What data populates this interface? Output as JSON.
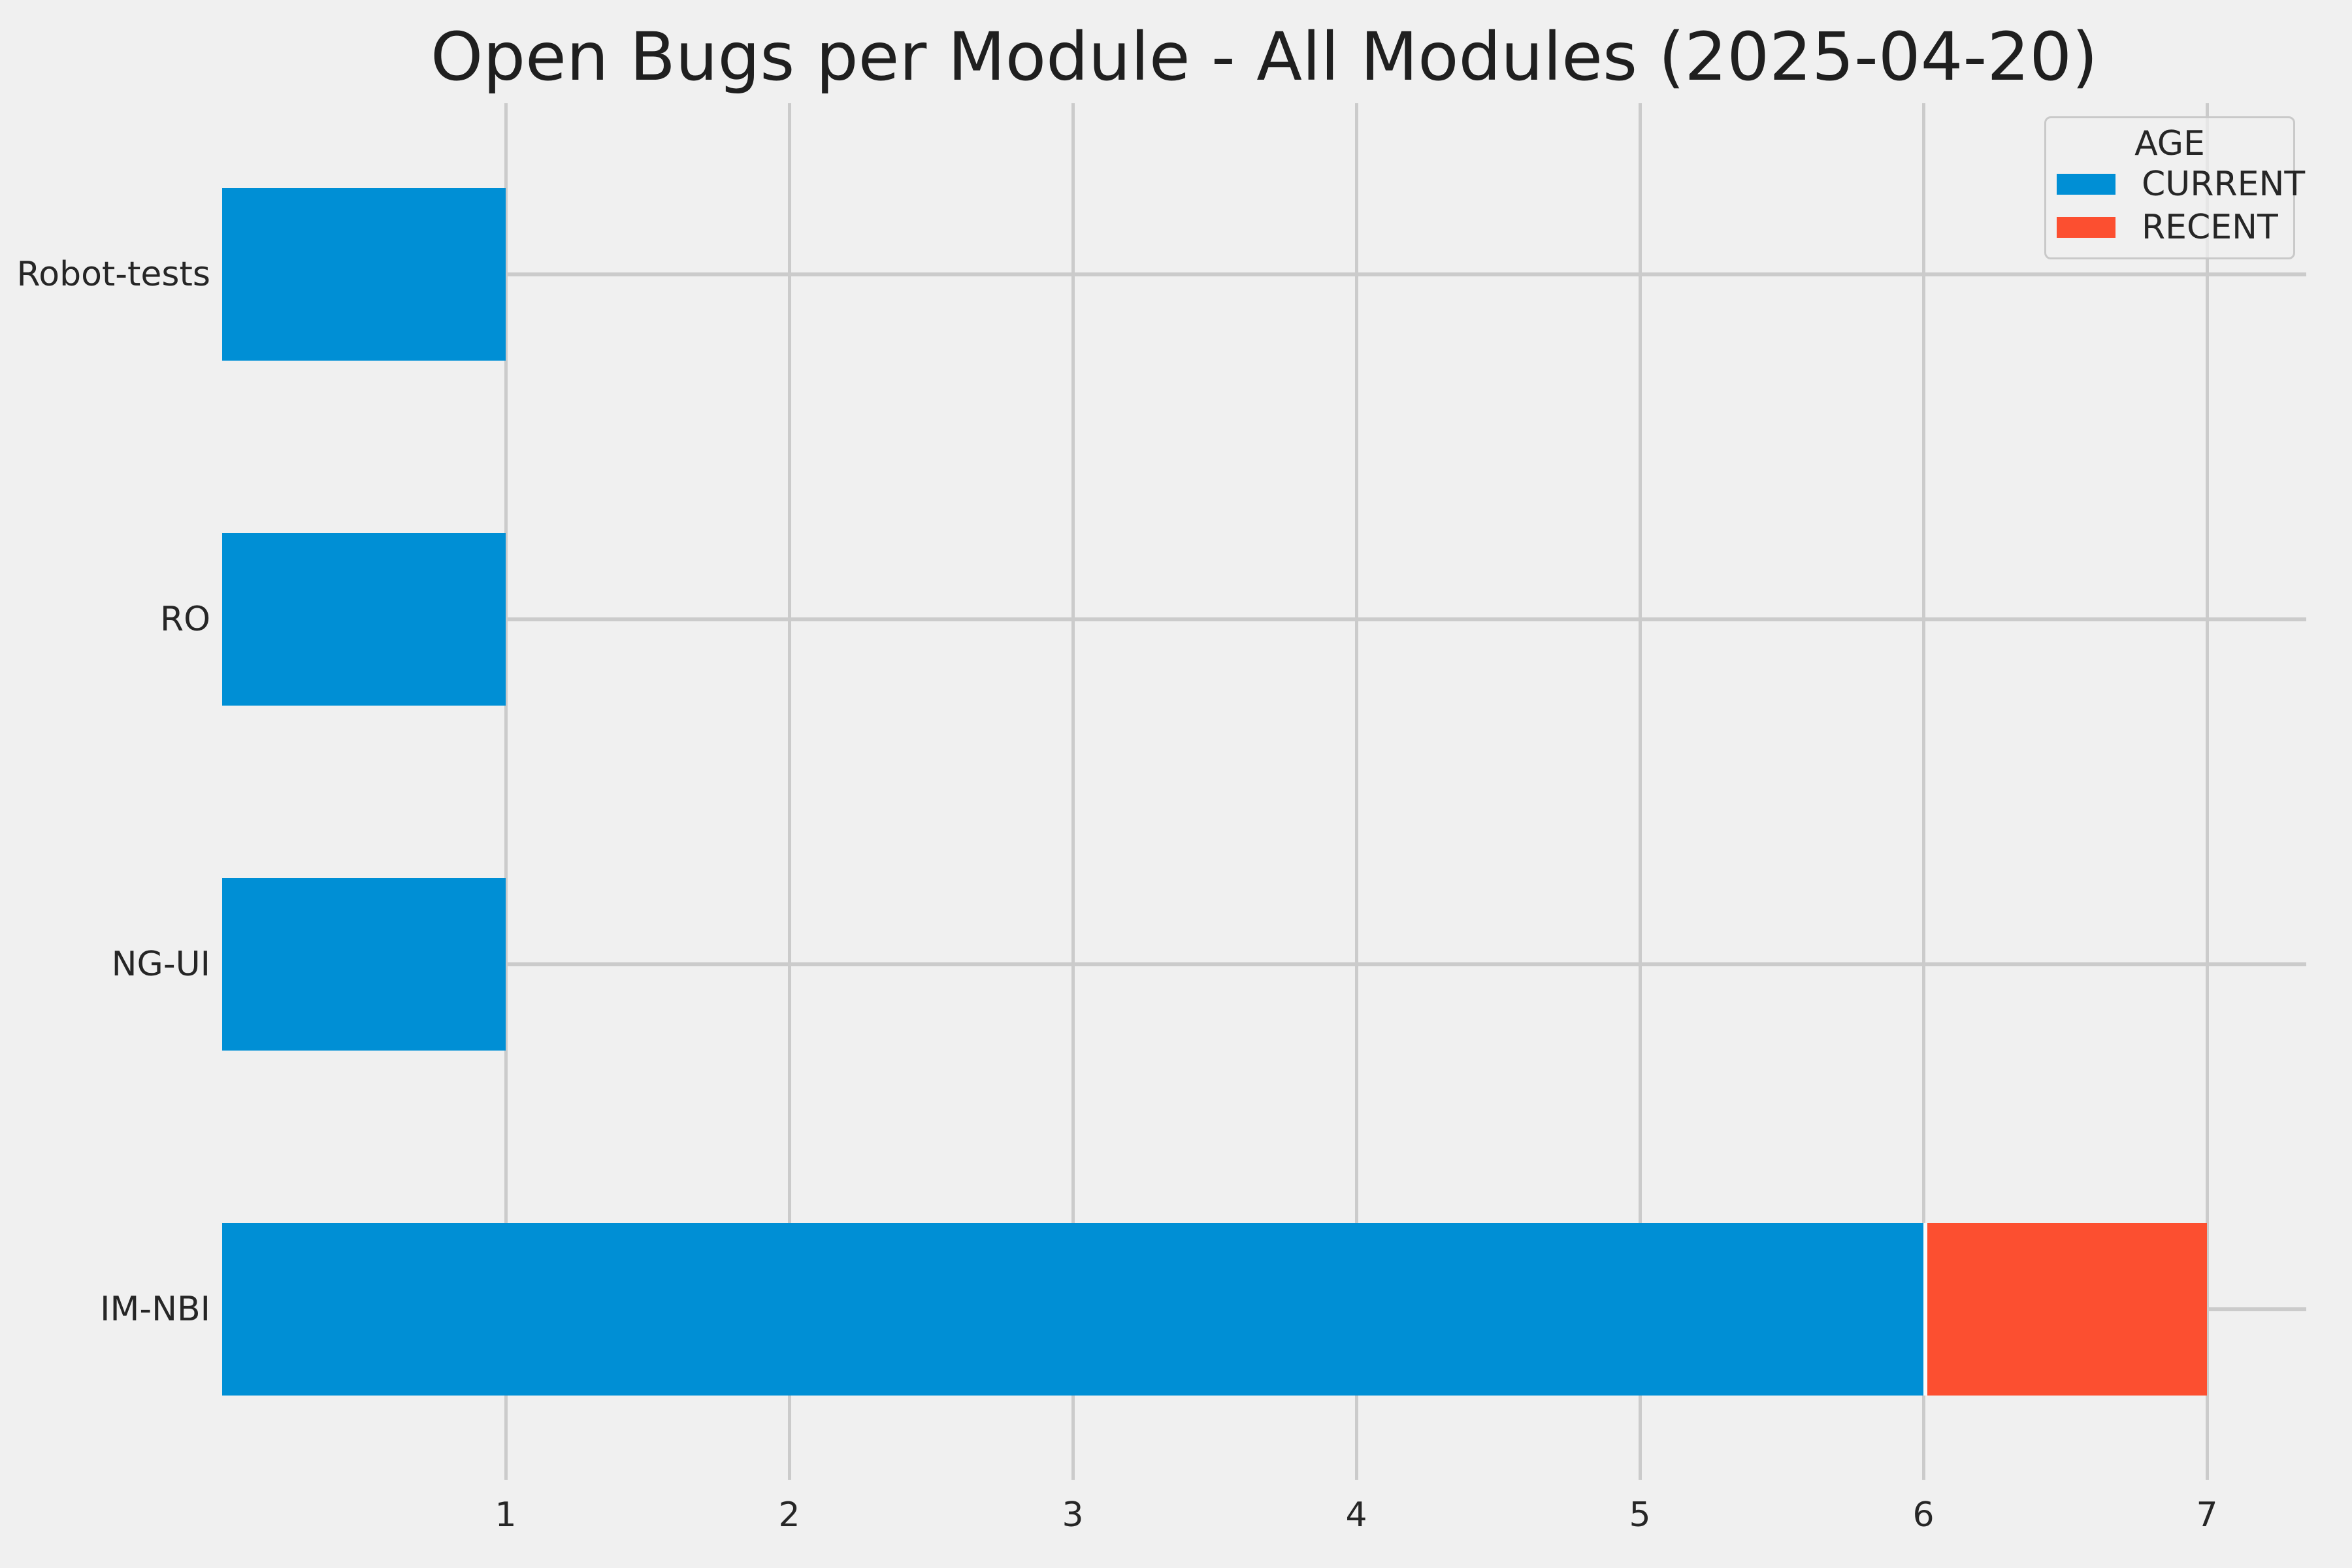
{
  "title": "Open Bugs per Module - All Modules (2025-04-20)",
  "colors": {
    "background": "#f0f0f0",
    "grid": "#cbcbcb",
    "text": "#262626",
    "segment_divider": "#f7fbfd",
    "legend_border": "#c9c9c9",
    "current": "#008fd5",
    "recent": "#fc4f30"
  },
  "chart_data": {
    "type": "bar",
    "orientation": "horizontal",
    "stacked": true,
    "title": "Open Bugs per Module - All Modules (2025-04-20)",
    "categories": [
      "Robot-tests",
      "RO",
      "NG-UI",
      "IM-NBI"
    ],
    "series": [
      {
        "name": "CURRENT",
        "color": "#008fd5",
        "values": [
          1,
          1,
          1,
          6
        ]
      },
      {
        "name": "RECENT",
        "color": "#fc4f30",
        "values": [
          0,
          0,
          0,
          1
        ]
      }
    ],
    "x_ticks": [
      1,
      2,
      3,
      4,
      5,
      6,
      7
    ],
    "xlim": [
      0,
      7.35
    ],
    "xlabel": "",
    "ylabel": "",
    "grid": true,
    "legend": {
      "title": "AGE",
      "entries": [
        "CURRENT",
        "RECENT"
      ],
      "position": "upper right"
    }
  }
}
